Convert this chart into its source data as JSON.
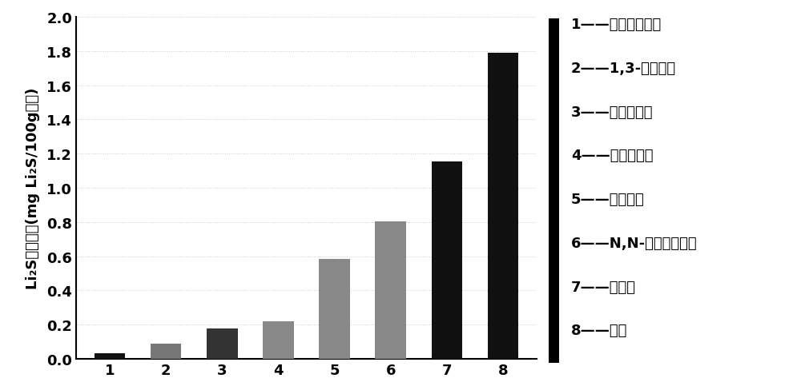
{
  "categories": [
    "1",
    "2",
    "3",
    "4",
    "5",
    "6",
    "7",
    "8"
  ],
  "values": [
    0.03,
    0.09,
    0.175,
    0.22,
    0.585,
    0.805,
    1.155,
    1.79
  ],
  "bar_colors": [
    "#111111",
    "#777777",
    "#333333",
    "#888888",
    "#888888",
    "#888888",
    "#111111",
    "#111111"
  ],
  "ylabel": "Li₂S的溶解度(mg Li₂S/100g溶剂)",
  "ylim": [
    0,
    2.0
  ],
  "yticks": [
    0.0,
    0.2,
    0.4,
    0.6,
    0.8,
    1.0,
    1.2,
    1.4,
    1.6,
    1.8,
    2.0
  ],
  "legend_lines": [
    "1——乙二醇二甲醚",
    "2——1,3-二氧戊环",
    "3——碳酸丙烯酩",
    "4——碳酸二甲酩",
    "5——二甲亚砂",
    "6——N,N-二甲基乙酰胺",
    "7——环丁砂",
    "8——乙脹"
  ],
  "background_color": "#ffffff",
  "grid_color": "#c8c8c8",
  "bar_width": 0.55,
  "label_fontsize": 13,
  "tick_fontsize": 13,
  "legend_fontsize": 13
}
